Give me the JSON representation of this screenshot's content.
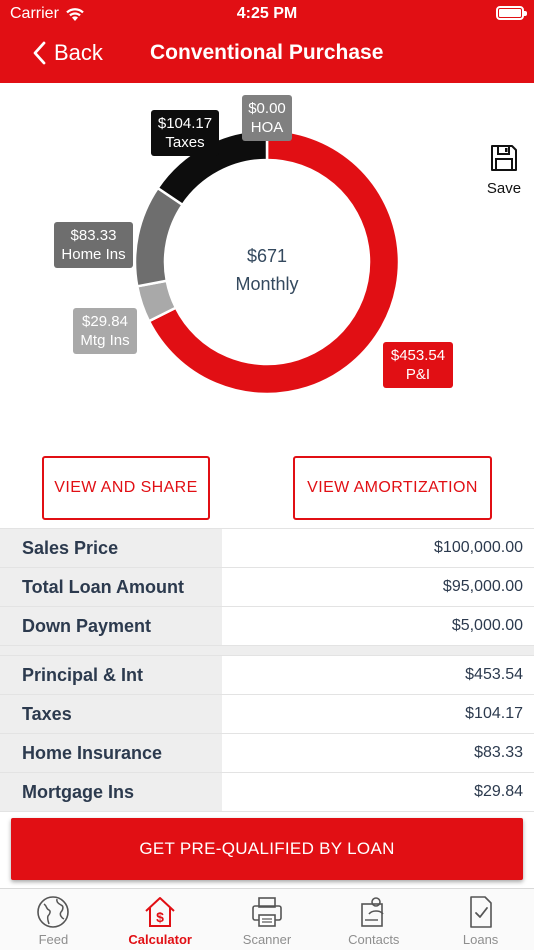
{
  "status_bar": {
    "carrier": "Carrier",
    "time": "4:25 PM"
  },
  "nav": {
    "back_label": "Back",
    "title": "Conventional Purchase"
  },
  "chart_data": {
    "type": "pie",
    "style": "donut",
    "center_value": "$671",
    "center_label": "Monthly",
    "slices": [
      {
        "name": "P&I",
        "value": 453.54,
        "label": "$453.54",
        "color": "#e10f14"
      },
      {
        "name": "Mtg Ins",
        "value": 29.84,
        "label": "$29.84",
        "color": "#a9a9a9"
      },
      {
        "name": "Home Ins",
        "value": 83.33,
        "label": "$83.33",
        "color": "#6e6e6e"
      },
      {
        "name": "Taxes",
        "value": 104.17,
        "label": "$104.17",
        "color": "#0d0d0d"
      },
      {
        "name": "HOA",
        "value": 0.0,
        "label": "$0.00",
        "color": "#808080"
      }
    ]
  },
  "save": {
    "label": "Save"
  },
  "buttons": {
    "view_share": "VIEW AND SHARE",
    "view_amortization": "VIEW AMORTIZATION"
  },
  "loan_summary": [
    {
      "label": "Sales Price",
      "value": "$100,000.00"
    },
    {
      "label": "Total Loan Amount",
      "value": "$95,000.00"
    },
    {
      "label": "Down Payment",
      "value": "$5,000.00"
    }
  ],
  "payment_breakdown": [
    {
      "label": "Principal & Int",
      "value": "$453.54"
    },
    {
      "label": "Taxes",
      "value": "$104.17"
    },
    {
      "label": "Home Insurance",
      "value": "$83.33"
    },
    {
      "label": "Mortgage Ins",
      "value": "$29.84"
    }
  ],
  "cta": {
    "label": "GET PRE-QUALIFIED BY LOAN"
  },
  "tabs": [
    {
      "label": "Feed",
      "icon": "globe-icon"
    },
    {
      "label": "Calculator",
      "icon": "house-dollar-icon",
      "active": true
    },
    {
      "label": "Scanner",
      "icon": "printer-icon"
    },
    {
      "label": "Contacts",
      "icon": "contact-card-icon"
    },
    {
      "label": "Loans",
      "icon": "document-check-icon"
    }
  ],
  "colors": {
    "brand": "#e10f14",
    "row_label_bg": "#eeeeee"
  }
}
